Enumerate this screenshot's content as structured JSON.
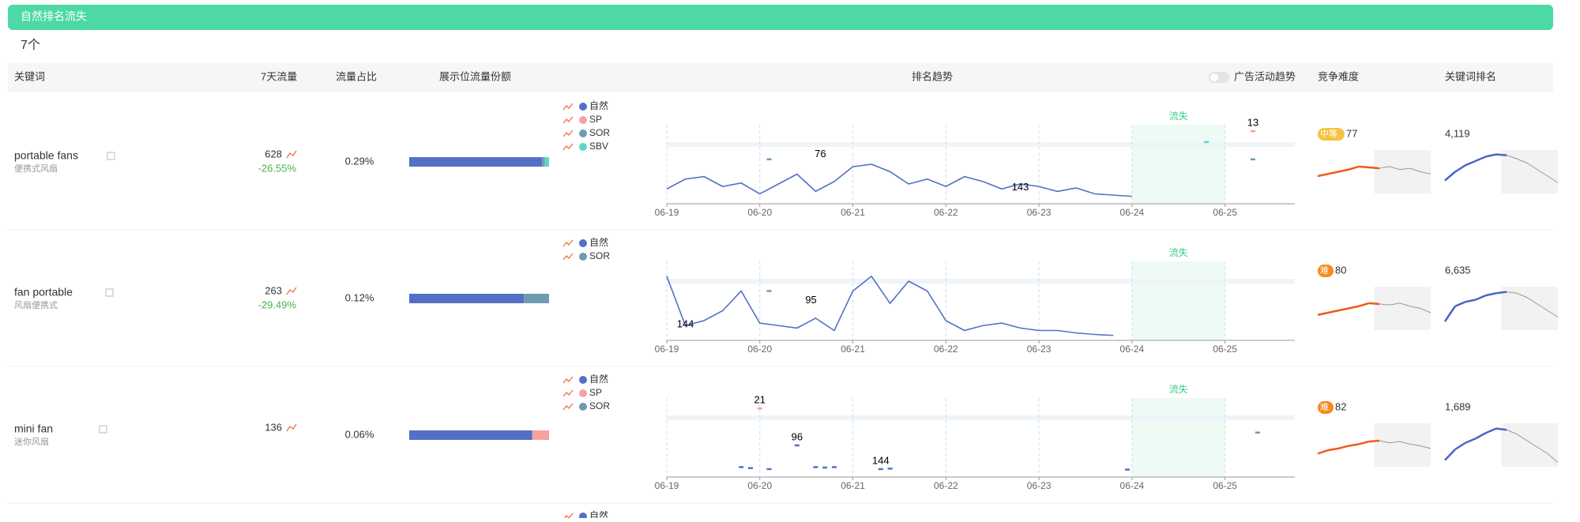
{
  "header": {
    "title": "自然排名流失",
    "count": "7个"
  },
  "columns": {
    "keyword": "关键词",
    "traffic": "7天流量",
    "share": "流量占比",
    "placement": "展示位流量份额",
    "trend": "排名趋势",
    "ad_toggle": "广告活动趋势",
    "difficulty": "竞争难度",
    "rank": "关键词排名"
  },
  "trend_axis": {
    "xlim": [
      0,
      6.75
    ],
    "ylim": [
      0,
      160
    ],
    "lost_label": "流失",
    "lost_range": [
      5,
      6
    ],
    "xticks": [
      {
        "value": 0,
        "label": "06-19"
      },
      {
        "value": 1,
        "label": "06-20"
      },
      {
        "value": 2,
        "label": "06-21"
      },
      {
        "value": 3,
        "label": "06-22"
      },
      {
        "value": 4,
        "label": "06-23"
      },
      {
        "value": 5,
        "label": "06-24"
      },
      {
        "value": 6,
        "label": "06-25"
      }
    ]
  },
  "spark_ylim": [
    0,
    100
  ],
  "rows": [
    {
      "keyword": "portable fans",
      "translation": "便携式风扇",
      "traffic": "628",
      "change": "-26.55%",
      "share": "0.29%",
      "placement": [
        {
          "name": "自然",
          "color": "#5470c6",
          "value": 95
        },
        {
          "name": "SOR",
          "color": "#6f9bb0",
          "value": 2
        },
        {
          "name": "SBV",
          "color": "#5dd8c8",
          "value": 3
        }
      ],
      "legend": [
        {
          "name": "自然",
          "color": "#5470c6"
        },
        {
          "name": "SP",
          "color": "#f4a3a0"
        },
        {
          "name": "SOR",
          "color": "#6f9bb0"
        },
        {
          "name": "SBV",
          "color": "#5dd8c8"
        }
      ],
      "trend": {
        "series": [
          {
            "name": "自然",
            "color": "#5470c6",
            "style": "line",
            "x": [
              0,
              0.2,
              0.4,
              0.6,
              0.8,
              1,
              1.2,
              1.4,
              1.6,
              1.8,
              2,
              2.2,
              2.4,
              2.6,
              2.8,
              3,
              3.2,
              3.4,
              3.6,
              3.8,
              4,
              4.2,
              4.4,
              4.6,
              5
            ],
            "values": [
              130,
              110,
              105,
              125,
              118,
              140,
              120,
              100,
              135,
              115,
              85,
              80,
              95,
              120,
              110,
              125,
              105,
              115,
              130,
              120,
              125,
              135,
              128,
              140,
              145
            ]
          },
          {
            "name": "SP",
            "color": "#f4a3a0",
            "style": "dash",
            "x": [
              6.3
            ],
            "values": [
              13
            ]
          },
          {
            "name": "SOR",
            "color": "#6f9bb0",
            "style": "dash",
            "x": [
              1.1,
              6.3
            ],
            "values": [
              70,
              70
            ]
          },
          {
            "name": "SBV",
            "color": "#5dd8c8",
            "style": "dash",
            "x": [
              5.8
            ],
            "values": [
              35
            ]
          }
        ],
        "annotations": [
          {
            "x": 1.65,
            "y": 76
          },
          {
            "x": 3.8,
            "y": 143
          },
          {
            "x": 6.3,
            "y": 13
          }
        ]
      },
      "difficulty": {
        "level": "中等",
        "color": "#f5c342",
        "value": "77",
        "spark": [
          40,
          45,
          50,
          55,
          62,
          60,
          58,
          62,
          55,
          58,
          50,
          45
        ]
      },
      "rank": {
        "value": "4,119",
        "spark": [
          30,
          50,
          65,
          75,
          85,
          90,
          88,
          80,
          70,
          55,
          40,
          25
        ]
      }
    },
    {
      "keyword": "fan portable",
      "translation": "风扇便携式",
      "traffic": "263",
      "change": "-29.49%",
      "share": "0.12%",
      "placement": [
        {
          "name": "自然",
          "color": "#5470c6",
          "value": 82
        },
        {
          "name": "SOR",
          "color": "#6f9bb0",
          "value": 18
        }
      ],
      "legend": [
        {
          "name": "自然",
          "color": "#5470c6"
        },
        {
          "name": "SOR",
          "color": "#6f9bb0"
        }
      ],
      "trend": {
        "series": [
          {
            "name": "自然",
            "color": "#5470c6",
            "style": "line",
            "x": [
              0,
              0.2,
              0.4,
              0.6,
              0.8,
              1,
              1.2,
              1.4,
              1.6,
              1.8,
              2,
              2.2,
              2.4,
              2.6,
              2.8,
              3,
              3.2,
              3.4,
              3.6,
              3.8,
              4,
              4.2,
              4.4,
              4.6,
              4.8
            ],
            "values": [
              30,
              130,
              120,
              100,
              60,
              125,
              130,
              135,
              115,
              140,
              60,
              30,
              85,
              40,
              60,
              120,
              140,
              130,
              125,
              135,
              140,
              140,
              145,
              148,
              150
            ]
          },
          {
            "name": "SOR",
            "color": "#6f9bb0",
            "style": "dash",
            "x": [
              1.1
            ],
            "values": [
              60
            ]
          }
        ],
        "annotations": [
          {
            "x": 0.2,
            "y": 144
          },
          {
            "x": 1.55,
            "y": 95
          }
        ]
      },
      "difficulty": {
        "level": "难",
        "color": "#f58a1f",
        "value": "80",
        "spark": [
          35,
          40,
          45,
          50,
          55,
          62,
          60,
          58,
          62,
          55,
          50,
          40
        ]
      },
      "rank": {
        "value": "6,635",
        "spark": [
          20,
          55,
          65,
          70,
          80,
          85,
          88,
          85,
          75,
          60,
          45,
          30
        ]
      }
    },
    {
      "keyword": "mini fan",
      "translation": "迷你风扇",
      "traffic": "136",
      "change": null,
      "share": "0.06%",
      "placement": [
        {
          "name": "自然",
          "color": "#5470c6",
          "value": 88
        },
        {
          "name": "SP",
          "color": "#f4a3a0",
          "value": 12
        }
      ],
      "legend": [
        {
          "name": "自然",
          "color": "#5470c6"
        },
        {
          "name": "SP",
          "color": "#f4a3a0"
        },
        {
          "name": "SOR",
          "color": "#6f9bb0"
        }
      ],
      "trend": {
        "series": [
          {
            "name": "自然",
            "color": "#5470c6",
            "style": "dash",
            "x": [
              0.8,
              0.9,
              1.1,
              1.4,
              1.6,
              1.7,
              1.8,
              2.3,
              2.4,
              4.95
            ],
            "values": [
              140,
              142,
              144,
              96,
              140,
              141,
              140,
              144,
              143,
              145
            ]
          },
          {
            "name": "SP",
            "color": "#f4a3a0",
            "style": "dash",
            "x": [
              1
            ],
            "values": [
              21
            ]
          },
          {
            "name": "SOR",
            "color": "#6f9bb0",
            "style": "dash",
            "x": [
              6.35
            ],
            "values": [
              70
            ]
          }
        ],
        "annotations": [
          {
            "x": 1,
            "y": 21
          },
          {
            "x": 1.4,
            "y": 96
          },
          {
            "x": 2.3,
            "y": 144
          }
        ]
      },
      "difficulty": {
        "level": "难",
        "color": "#f58a1f",
        "value": "82",
        "spark": [
          30,
          38,
          42,
          48,
          52,
          58,
          60,
          55,
          58,
          52,
          48,
          42
        ]
      },
      "rank": {
        "value": "1,689",
        "spark": [
          15,
          40,
          55,
          65,
          78,
          88,
          85,
          75,
          60,
          45,
          30,
          10
        ]
      }
    },
    {
      "legend": [
        {
          "name": "自然",
          "color": "#5470c6"
        }
      ]
    }
  ]
}
